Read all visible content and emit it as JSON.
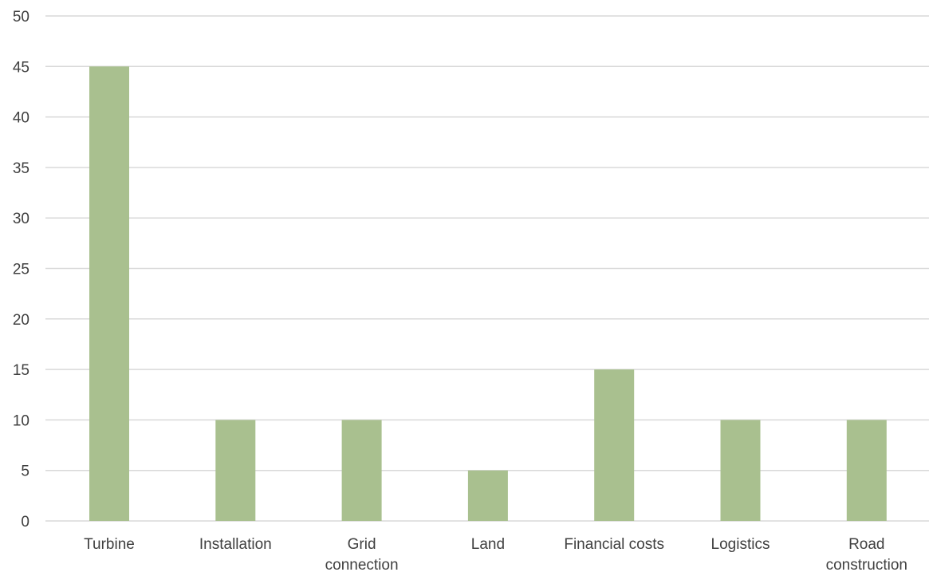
{
  "chart_data": {
    "type": "bar",
    "title": "",
    "xlabel": "",
    "ylabel": "",
    "ylim": [
      0,
      50
    ],
    "yticks": [
      0,
      5,
      10,
      15,
      20,
      25,
      30,
      35,
      40,
      45,
      50
    ],
    "grid": true,
    "legend": "none",
    "bar_color": "#a9c08f",
    "categories": [
      "Turbine",
      "Installation",
      "Grid connection",
      "Land",
      "Financial costs",
      "Logistics",
      "Road construction"
    ],
    "category_label_lines": [
      [
        "Turbine"
      ],
      [
        "Installation"
      ],
      [
        "Grid",
        "connection"
      ],
      [
        "Land"
      ],
      [
        "Financial costs"
      ],
      [
        "Logistics"
      ],
      [
        "Road",
        "construction"
      ]
    ],
    "values": [
      45,
      10,
      10,
      5,
      15,
      10,
      10
    ]
  }
}
